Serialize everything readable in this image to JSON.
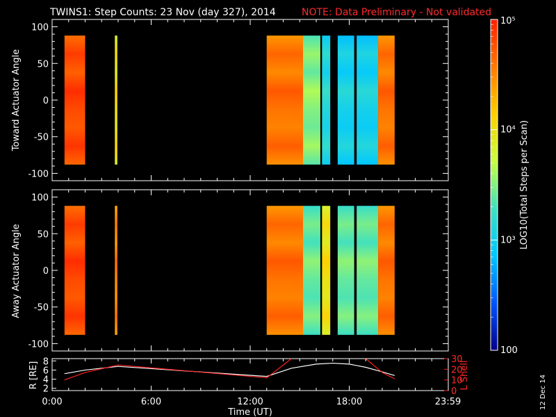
{
  "header": {
    "title": "TWINS1: Step Counts: 23 Nov (day 327), 2014",
    "note": "NOTE: Data Preliminary - Not validated"
  },
  "colors": {
    "background": "#000000",
    "axes": "#ffffff",
    "note": "#ff2a2a",
    "l_shell_line": "#ff2020",
    "r_line": "#ffffff"
  },
  "colorbar": {
    "label": "LOG10(Total Steps per Scan)",
    "tick_labels": [
      "100",
      "10³",
      "10⁴",
      "10⁵"
    ],
    "scale": "log",
    "range": [
      100,
      100000
    ],
    "palette": [
      "#00008b",
      "#0055ff",
      "#00c8ff",
      "#40e0c0",
      "#c8ff40",
      "#ffd000",
      "#ff7a00",
      "#ff2000"
    ]
  },
  "date_stamp": "12 Dec 14",
  "chart_data": [
    {
      "type": "heatmap",
      "panel": "toward",
      "ylabel": "Toward Actuator Angle",
      "ylim": [
        -110,
        110
      ],
      "yticks": [
        "100",
        "50",
        "0",
        "-50",
        "-100"
      ],
      "data_angle_range": [
        -88,
        88
      ],
      "x_unit": "hours UT",
      "xlim": [
        0,
        24
      ],
      "bands": [
        {
          "x": [
            0.75,
            2.0
          ],
          "level": 4.8
        },
        {
          "x": [
            3.8,
            3.95
          ],
          "level": 4.0
        },
        {
          "x": [
            13.0,
            15.2
          ],
          "level": 4.6
        },
        {
          "x": [
            15.2,
            16.25
          ],
          "level": 3.5
        },
        {
          "x": [
            16.35,
            16.85
          ],
          "level": 3.1
        },
        {
          "x": [
            17.3,
            18.3
          ],
          "level": 3.0
        },
        {
          "x": [
            18.45,
            19.75
          ],
          "level": 3.0
        },
        {
          "x": [
            19.75,
            20.75
          ],
          "level": 4.6
        }
      ]
    },
    {
      "type": "heatmap",
      "panel": "away",
      "ylabel": "Away Actuator Angle",
      "ylim": [
        -110,
        110
      ],
      "yticks": [
        "100",
        "50",
        "0",
        "-50",
        "-100"
      ],
      "data_angle_range": [
        -88,
        88
      ],
      "x_unit": "hours UT",
      "xlim": [
        0,
        24
      ],
      "bands": [
        {
          "x": [
            0.75,
            2.0
          ],
          "level": 4.8
        },
        {
          "x": [
            3.8,
            3.95
          ],
          "level": 4.5
        },
        {
          "x": [
            13.0,
            15.2
          ],
          "level": 4.6
        },
        {
          "x": [
            15.2,
            16.25
          ],
          "level": 3.4
        },
        {
          "x": [
            16.35,
            16.85
          ],
          "level": 4.0
        },
        {
          "x": [
            17.3,
            18.3
          ],
          "level": 3.4
        },
        {
          "x": [
            18.45,
            19.75
          ],
          "level": 3.4
        },
        {
          "x": [
            19.75,
            20.75
          ],
          "level": 4.6
        }
      ]
    },
    {
      "type": "line",
      "panel": "orbit",
      "xlabel": "Time (UT)",
      "xticks": [
        "0:00",
        "6:00",
        "12:00",
        "18:00",
        "23:59"
      ],
      "xtick_values": [
        0,
        6,
        12,
        18,
        23.98
      ],
      "xlim": [
        0,
        24
      ],
      "ylabel": "R [RE]",
      "ylim": [
        1.5,
        8.5
      ],
      "yticks": [
        "8",
        "6",
        "4",
        "2"
      ],
      "ylabel_right": "L Shell",
      "ylim_right": [
        0,
        30
      ],
      "yticks_right": [
        "30",
        "20",
        "10",
        "0"
      ],
      "series": [
        {
          "axis": "left",
          "x": [
            0.75,
            2.0,
            4.0,
            13.0,
            14.5,
            16.0,
            17.0,
            18.0,
            19.0,
            20.0,
            20.75
          ],
          "values": [
            5.2,
            6.0,
            6.8,
            4.6,
            6.4,
            7.3,
            7.5,
            7.3,
            6.6,
            5.6,
            4.8
          ]
        },
        {
          "axis": "right",
          "x": [
            0.75,
            2.0,
            4.0,
            13.0,
            14.5
          ],
          "values": [
            10,
            17,
            24,
            12,
            30
          ],
          "x2": [
            19.0,
            20.0,
            20.75
          ],
          "values2": [
            30,
            17,
            11
          ]
        }
      ]
    }
  ]
}
